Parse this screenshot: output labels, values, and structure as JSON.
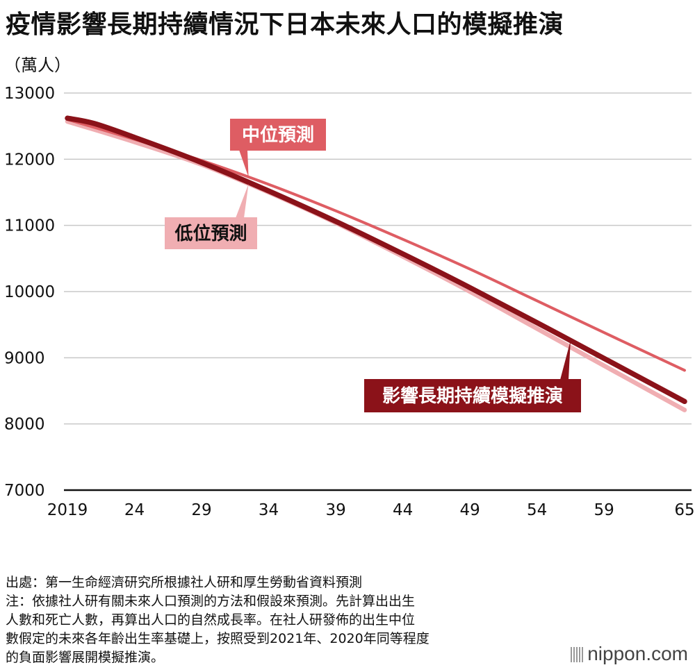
{
  "page": {
    "title": "疫情影響長期持續情況下日本未來人口的模擬推演",
    "unit_label": "（萬人）",
    "source": "出處：第一生命經濟研究所根據社人研和厚生勞動省資料預測",
    "note_lines": [
      "注：依據社人研有關未來人口預測的方法和假設來預測。先計算出出生",
      "人數和死亡人數，再算出人口的自然成長率。在社人研發佈的出生中位",
      "數假定的未來各年齡出生率基礎上，按照受到2021年、2020年同等程度",
      "的負面影響展開模擬推演。"
    ],
    "brand": "nippon.com"
  },
  "chart_data": {
    "type": "line",
    "title": "疫情影響長期持續情況下日本未來人口的模擬推演",
    "ylabel": "（萬人）",
    "xlabel": "",
    "xlim": [
      2019,
      2065
    ],
    "ylim": [
      7000,
      13000
    ],
    "grid": true,
    "x_tick_labels": [
      "2019",
      "24",
      "29",
      "34",
      "39",
      "44",
      "49",
      "54",
      "59",
      "65"
    ],
    "x_tick_values": [
      2019,
      2024,
      2029,
      2034,
      2039,
      2044,
      2049,
      2054,
      2059,
      2065
    ],
    "y_ticks": [
      7000,
      8000,
      9000,
      10000,
      11000,
      12000,
      13000
    ],
    "series": [
      {
        "name": "中位預測",
        "color": "#de5d63",
        "x": [
          2019,
          2024,
          2029,
          2034,
          2039,
          2044,
          2049,
          2054,
          2059,
          2065
        ],
        "values": [
          12600,
          12300,
          11980,
          11620,
          11220,
          10790,
          10340,
          9860,
          9380,
          8810
        ]
      },
      {
        "name": "低位預測",
        "color": "#f0aeb2",
        "x": [
          2019,
          2024,
          2029,
          2034,
          2039,
          2044,
          2049,
          2054,
          2059,
          2065
        ],
        "values": [
          12570,
          12260,
          11920,
          11500,
          11040,
          10530,
          10000,
          9440,
          8880,
          8210
        ]
      },
      {
        "name": "影響長期持續模擬推演",
        "color": "#8b1219",
        "x": [
          2019,
          2021,
          2024,
          2029,
          2034,
          2039,
          2044,
          2049,
          2054,
          2059,
          2065
        ],
        "values": [
          12620,
          12540,
          12330,
          11950,
          11520,
          11060,
          10570,
          10060,
          9530,
          8990,
          8340
        ]
      }
    ],
    "annotations": [
      {
        "text": "中位預測",
        "series": 0,
        "label_bg": "#de5d63",
        "text_color": "#ffffff"
      },
      {
        "text": "低位預測",
        "series": 1,
        "label_bg": "#f0aeb2",
        "text_color": "#111111"
      },
      {
        "text": "影響長期持續模擬推演",
        "series": 2,
        "label_bg": "#8b1219",
        "text_color": "#ffffff"
      }
    ]
  }
}
